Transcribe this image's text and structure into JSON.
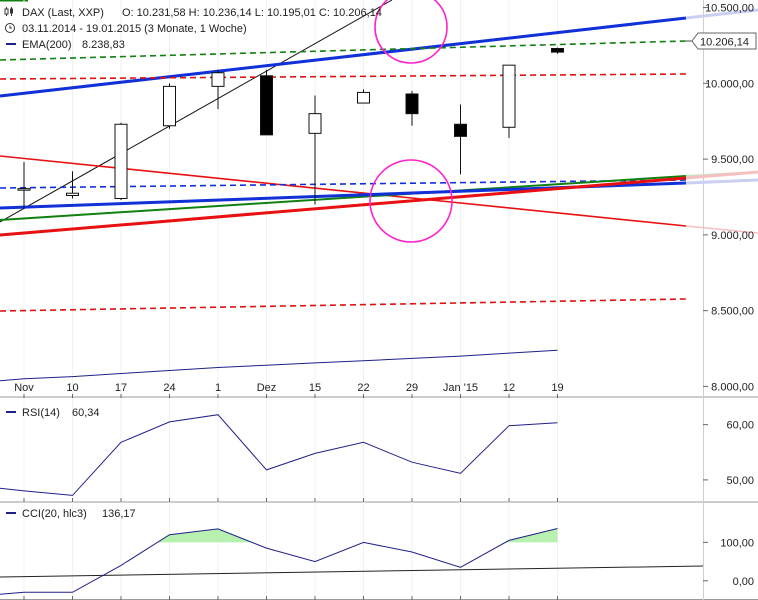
{
  "header": {
    "instrument": "DAX (Last, XXP)",
    "ohlc": "O: 10.231,58  H: 10.236,14  L: 10.195,01  C: 10.206,14",
    "period": "03.11.2014 - 19.01.2015 (3 Monate, 1 Woche)",
    "ema_label": "EMA(200)",
    "ema_value": "8.238,83"
  },
  "last_price_label": "10.206,14",
  "colors": {
    "up_candle": "#ffffff",
    "down_candle": "#000000",
    "blue_trend": "#1030d8",
    "red_trend": "#e81010",
    "green_trend": "#108010",
    "red_dashed": "#e01010",
    "green_dashed": "#108010",
    "blue_dashed": "#1030d8",
    "ema": "#20208a",
    "circle": "#ff22cc",
    "cci_fill": "#b8f0b0"
  },
  "chart_data": [
    {
      "type": "candlestick",
      "x_labels": [
        "Nov",
        "10",
        "17",
        "24",
        "1",
        "Dez",
        "15",
        "22",
        "29",
        "Jan '15",
        "12",
        "19"
      ],
      "y_ticks": [
        "10.500,00",
        "10.000,00",
        "9.500,00",
        "9.000,00",
        "8.500,00",
        "8.000,00"
      ],
      "y_tick_values": [
        10500,
        10000,
        9500,
        9000,
        8500,
        8000
      ],
      "ylim": [
        7950,
        10550
      ],
      "candles": [
        {
          "o": 9300,
          "h": 9480,
          "l": 9170,
          "c": 9305
        },
        {
          "o": 9260,
          "h": 9420,
          "l": 9240,
          "c": 9275
        },
        {
          "o": 9240,
          "h": 9740,
          "l": 9230,
          "c": 9730
        },
        {
          "o": 9720,
          "h": 10000,
          "l": 9700,
          "c": 9980
        },
        {
          "o": 9980,
          "h": 10090,
          "l": 9830,
          "c": 10070
        },
        {
          "o": 10050,
          "h": 10090,
          "l": 9660,
          "c": 9660
        },
        {
          "o": 9670,
          "h": 9920,
          "l": 9200,
          "c": 9800
        },
        {
          "o": 9870,
          "h": 9960,
          "l": 9870,
          "c": 9940
        },
        {
          "o": 9930,
          "h": 9950,
          "l": 9720,
          "c": 9800
        },
        {
          "o": 9730,
          "h": 9860,
          "l": 9400,
          "c": 9650
        },
        {
          "o": 9710,
          "h": 10120,
          "l": 9640,
          "c": 10120
        },
        {
          "o": 10230,
          "h": 10236,
          "l": 10195,
          "c": 10206
        }
      ],
      "ema200": [
        8050,
        8065,
        8085,
        8105,
        8125,
        8140,
        8155,
        8170,
        8185,
        8200,
        8220,
        8239
      ]
    },
    {
      "type": "line",
      "name": "RSI(14)",
      "value_label": "60,34",
      "y_ticks": [
        "60,00",
        "50,00"
      ],
      "y_tick_values": [
        60,
        50
      ],
      "ylim": [
        46,
        65
      ],
      "values": [
        48,
        47.2,
        56.8,
        60.5,
        61.8,
        51.8,
        54.8,
        56.8,
        53.2,
        51.2,
        59.8,
        60.34
      ]
    },
    {
      "type": "area",
      "name": "CCI(20, hlc3)",
      "value_label": "136,17",
      "y_ticks": [
        "100,00",
        "0,00"
      ],
      "y_tick_values": [
        100,
        0
      ],
      "ylim": [
        -50,
        205
      ],
      "fill_threshold": 100,
      "values": [
        -30,
        -30,
        40,
        120,
        135,
        85,
        50,
        100,
        75,
        35,
        105,
        136.17
      ]
    }
  ]
}
